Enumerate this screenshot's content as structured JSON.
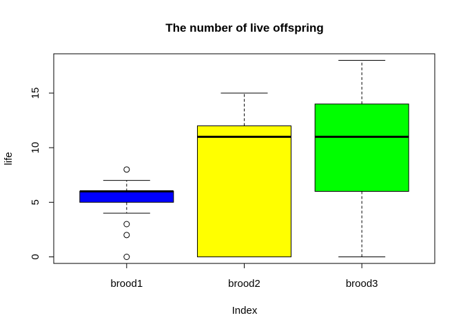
{
  "chart_data": {
    "type": "boxplot",
    "title": "The number of live offspring",
    "xlabel": "Index",
    "ylabel": "life",
    "ylim": [
      -0.6,
      18.6
    ],
    "yticks": [
      0,
      5,
      10,
      15
    ],
    "grid": false,
    "categories": [
      "brood1",
      "brood2",
      "brood3"
    ],
    "boxes": [
      {
        "category": "brood1",
        "color": "#0000ff",
        "whisker_low": 4,
        "q1": 5,
        "median": 6,
        "q3": 6,
        "whisker_high": 7,
        "outliers": [
          8,
          3,
          2,
          0
        ]
      },
      {
        "category": "brood2",
        "color": "#ffff00",
        "whisker_low": 0,
        "q1": 0,
        "median": 11,
        "q3": 12,
        "whisker_high": 15,
        "outliers": []
      },
      {
        "category": "brood3",
        "color": "#00ff00",
        "whisker_low": 0,
        "q1": 6,
        "median": 11,
        "q3": 14,
        "whisker_high": 18,
        "outliers": []
      }
    ]
  }
}
